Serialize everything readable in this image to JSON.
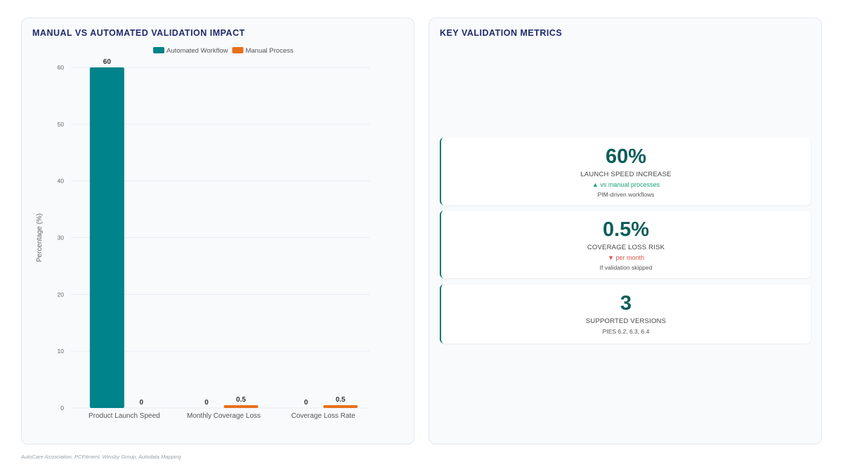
{
  "chart_panel": {
    "title": "MANUAL VS AUTOMATED VALIDATION IMPACT"
  },
  "chart_data": {
    "type": "bar",
    "categories": [
      "Product Launch Speed",
      "Monthly Coverage Loss",
      "Coverage Loss Rate"
    ],
    "series": [
      {
        "name": "Automated Workflow",
        "values": [
          60,
          0,
          0
        ],
        "color": "#00838a"
      },
      {
        "name": "Manual Process",
        "values": [
          0,
          0.5,
          0.5
        ],
        "color": "#e8701a"
      }
    ],
    "data_labels": [
      [
        "60",
        "0",
        "0"
      ],
      [
        "0",
        "0.5",
        "0.5"
      ]
    ],
    "yticks": [
      "0",
      "10",
      "20",
      "30",
      "40",
      "50",
      "60"
    ],
    "ylabel": "Percentage (%)",
    "ylim": [
      0,
      60
    ],
    "legend_position": "top"
  },
  "metrics_panel": {
    "title": "KEY VALIDATION METRICS",
    "cards": [
      {
        "value": "60%",
        "label": "LAUNCH SPEED INCREASE",
        "trend": "▲ vs manual processes",
        "trend_dir": "up",
        "note": "PIM-driven workflows"
      },
      {
        "value": "0.5%",
        "label": "COVERAGE LOSS RISK",
        "trend": "▼ per month",
        "trend_dir": "down",
        "note": "If validation skipped"
      },
      {
        "value": "3",
        "label": "SUPPORTED VERSIONS",
        "note": "PIES 6.2, 6.3, 6.4"
      }
    ]
  },
  "footer": {
    "source": "AutoCare Association, PCFitment, Winsby Group, Autodata Mapping"
  }
}
